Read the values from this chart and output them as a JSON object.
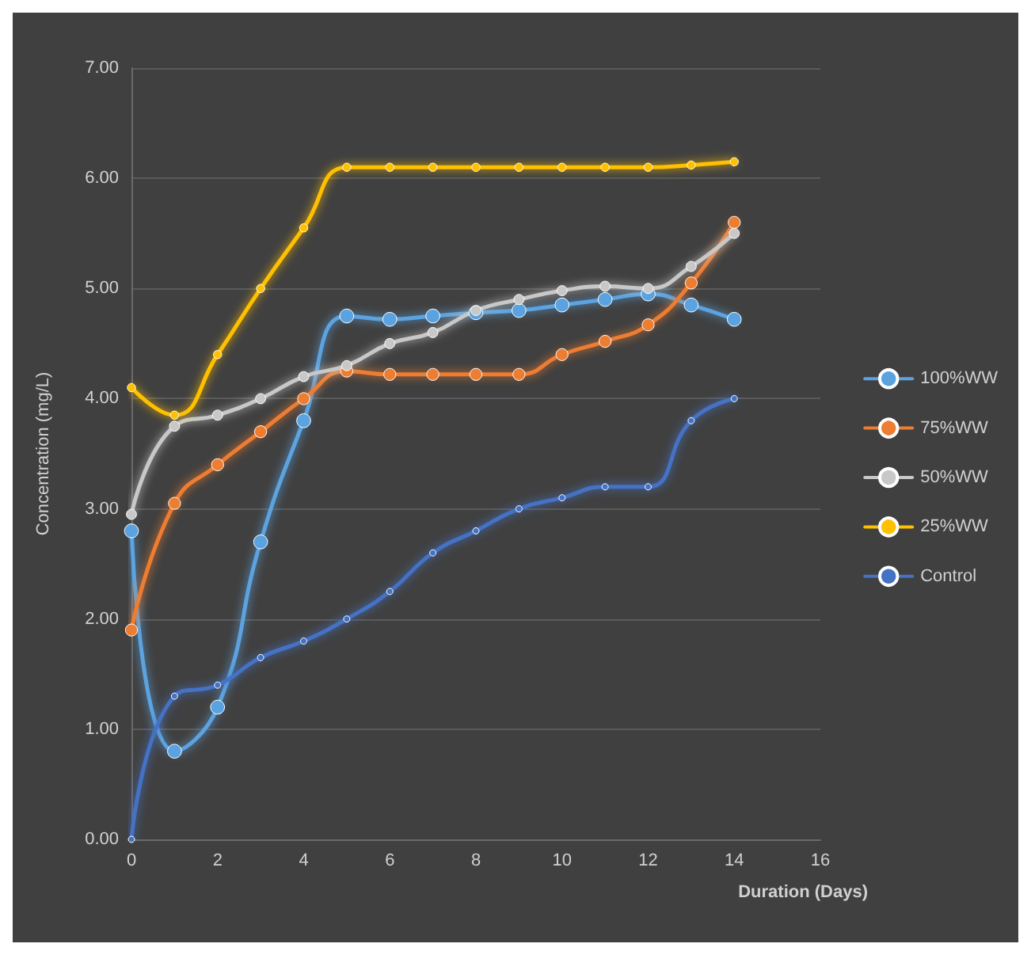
{
  "chart_data": {
    "type": "line",
    "xlabel": "Duration (Days)",
    "ylabel": "Concentration (mg/L)",
    "x": [
      0,
      1,
      2,
      3,
      4,
      5,
      6,
      7,
      8,
      9,
      10,
      11,
      12,
      13,
      14
    ],
    "series": [
      {
        "name": "100%WW",
        "color": "#5ba3e0",
        "values": [
          2.8,
          0.8,
          1.2,
          2.7,
          3.8,
          4.75,
          4.72,
          4.75,
          4.78,
          4.8,
          4.85,
          4.9,
          4.95,
          4.85,
          4.72
        ]
      },
      {
        "name": "75%WW",
        "color": "#ed7d31",
        "values": [
          1.9,
          3.05,
          3.4,
          3.7,
          4.0,
          4.25,
          4.22,
          4.22,
          4.22,
          4.22,
          4.4,
          4.52,
          4.67,
          5.05,
          5.6
        ]
      },
      {
        "name": "50%WW",
        "color": "#c8c8c8",
        "values": [
          2.95,
          3.75,
          3.85,
          4.0,
          4.2,
          4.3,
          4.5,
          4.6,
          4.8,
          4.9,
          4.98,
          5.02,
          5.0,
          5.2,
          5.5
        ]
      },
      {
        "name": "25%WW",
        "color": "#ffc000",
        "values": [
          4.1,
          3.85,
          4.4,
          5.0,
          5.55,
          6.1,
          6.1,
          6.1,
          6.1,
          6.1,
          6.1,
          6.1,
          6.1,
          6.12,
          6.15
        ]
      },
      {
        "name": "Control",
        "color": "#4472c4",
        "values": [
          0,
          1.3,
          1.4,
          1.65,
          1.8,
          2.0,
          2.25,
          2.6,
          2.8,
          3.0,
          3.1,
          3.2,
          3.2,
          3.8,
          4.0
        ]
      }
    ],
    "xlim": [
      0,
      16
    ],
    "xticks": [
      0,
      2,
      4,
      6,
      8,
      10,
      12,
      14,
      16
    ],
    "ylim": [
      0,
      7
    ],
    "yticks": [
      {
        "value": 0,
        "label": "0.00"
      },
      {
        "value": 1,
        "label": "1.00"
      },
      {
        "value": 2,
        "label": "2.00"
      },
      {
        "value": 3,
        "label": "3.00"
      },
      {
        "value": 4,
        "label": "4.00"
      },
      {
        "value": 5,
        "label": "5.00"
      },
      {
        "value": 6,
        "label": "6.00"
      },
      {
        "value": 7,
        "label": "7.00"
      }
    ],
    "grid": "y",
    "legend": "right",
    "marker": "circle",
    "line_style": "solid"
  }
}
